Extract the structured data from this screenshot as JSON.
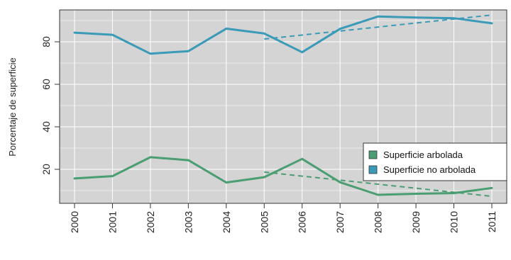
{
  "chart_data": {
    "type": "line",
    "title": "",
    "xlabel": "",
    "ylabel": "Porcentaje de superficie",
    "x": [
      "2000",
      "2001",
      "2002",
      "2003",
      "2004",
      "2005",
      "2006",
      "2007",
      "2008",
      "2009",
      "2010",
      "2011"
    ],
    "xlim": [
      2000,
      2011
    ],
    "ylim": [
      4,
      95
    ],
    "yticks": [
      20,
      40,
      60,
      80
    ],
    "grid": true,
    "background": "#d4d4d4",
    "legend_position": "right",
    "series": [
      {
        "name": "Superficie arbolada",
        "color": "#4a9e72",
        "values": [
          15.7,
          16.8,
          25.7,
          24.3,
          13.8,
          16.3,
          24.9,
          13.9,
          8.0,
          8.5,
          8.8,
          11.2
        ],
        "trend": {
          "x": [
            2005,
            2011
          ],
          "y": [
            18.7,
            7.3
          ]
        }
      },
      {
        "name": "Superficie no arbolada",
        "color": "#3a9ab8",
        "values": [
          84.3,
          83.3,
          74.4,
          75.6,
          86.2,
          83.9,
          75.1,
          86.1,
          91.9,
          91.4,
          91.1,
          88.7
        ],
        "trend": {
          "x": [
            2005,
            2011
          ],
          "y": [
            81.3,
            92.6
          ]
        }
      }
    ]
  }
}
